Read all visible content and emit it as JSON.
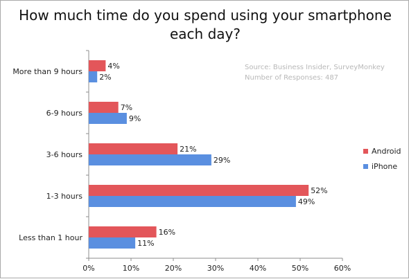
{
  "chart_data": {
    "type": "bar",
    "orientation": "horizontal",
    "title": "How much time do you spend using your smartphone each day?",
    "title_lines": [
      "How much time do you spend using your smartphone",
      "each day?"
    ],
    "source_lines": [
      "Source: Business Insider, SurveyMonkey",
      "Number of Responses: 487"
    ],
    "categories": [
      "More than 9 hours",
      "6-9 hours",
      "3-6 hours",
      "1-3 hours",
      "Less than 1 hour"
    ],
    "series": [
      {
        "name": "Android",
        "color": "#e3565a",
        "values": [
          4,
          7,
          21,
          52,
          16
        ]
      },
      {
        "name": "iPhone",
        "color": "#5a8fe0",
        "values": [
          2,
          9,
          29,
          49,
          11
        ]
      }
    ],
    "value_suffix": "%",
    "xlim": [
      0,
      60
    ],
    "xticks": [
      "0%",
      "10%",
      "20%",
      "30%",
      "40%",
      "50%",
      "60%"
    ],
    "grid": false,
    "legend_position": "right"
  }
}
